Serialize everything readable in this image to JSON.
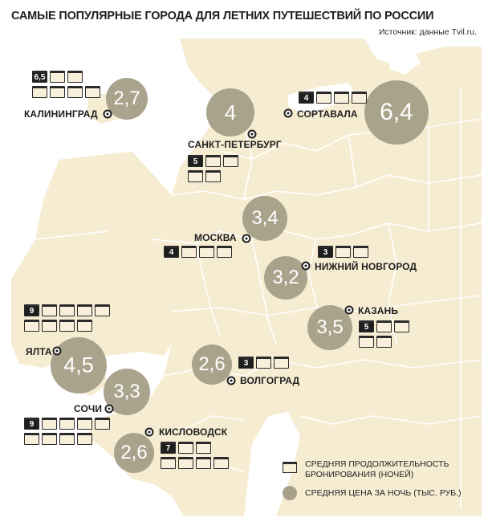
{
  "title": "САМЫЕ ПОПУЛЯРНЫЕ ГОРОДА ДЛЯ ЛЕТНИХ ПУТЕШЕСТВИЙ ПО РОССИИ",
  "source": "Источник: данные Tvil.ru.",
  "cities": [
    {
      "name": "КАЛИНИНГРАД",
      "price": "2,7",
      "nights": "6,5"
    },
    {
      "name": "САНКТ-ПЕТЕРБУРГ",
      "price": "4",
      "nights": "5"
    },
    {
      "name": "СОРТАВАЛА",
      "price": "6,4",
      "nights": "4"
    },
    {
      "name": "МОСКВА",
      "price": "3,4",
      "nights": "4"
    },
    {
      "name": "НИЖНИЙ НОВГОРОД",
      "price": "3,2",
      "nights": "3"
    },
    {
      "name": "КАЗАНЬ",
      "price": "3,5",
      "nights": "5"
    },
    {
      "name": "ЯЛТА",
      "price": "4,5",
      "nights": "9"
    },
    {
      "name": "ВОЛГОГРАД",
      "price": "2,6",
      "nights": "3"
    },
    {
      "name": "СОЧИ",
      "price": "3,3",
      "nights": "9"
    },
    {
      "name": "КИСЛОВОДСК",
      "price": "2,6",
      "nights": "7"
    }
  ],
  "legend": {
    "duration": "СРЕДНЯЯ ПРОДОЛЖИТЕЛЬНОСТЬ БРОНИРОВАНИЯ (НОЧЕЙ)",
    "price": "СРЕДНЯЯ ЦЕНА ЗА НОЧЬ (ТЫС. РУБ.)"
  },
  "colors": {
    "land": "#f6ecd2",
    "sea": "#ffffff",
    "border": "#ffffff",
    "circle": "#a39c85",
    "text": "#1e1e1e"
  }
}
